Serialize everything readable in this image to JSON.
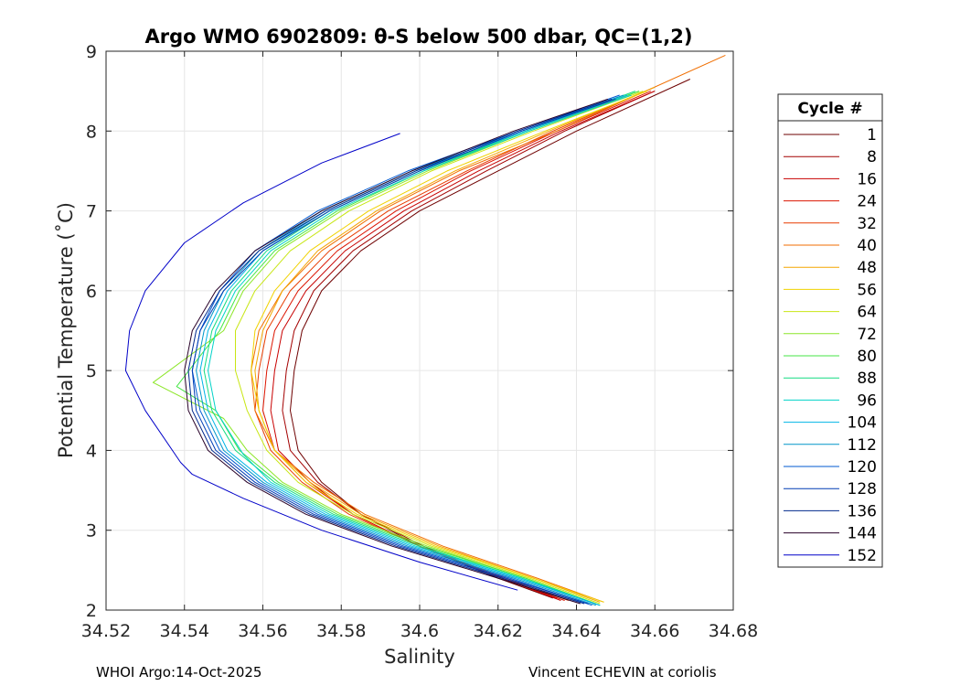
{
  "chart_data": {
    "type": "line",
    "title": "Argo WMO 6902809: θ-S below 500 dbar,  QC=(1,2)",
    "xlabel": "Salinity",
    "ylabel": "Potential Temperature (˚C)",
    "xlim": [
      34.52,
      34.68
    ],
    "ylim": [
      2,
      9
    ],
    "xticks": [
      34.52,
      34.54,
      34.56,
      34.58,
      34.6,
      34.62,
      34.64,
      34.66,
      34.68
    ],
    "xtick_labels": [
      "34.52",
      "34.54",
      "34.56",
      "34.58",
      "34.6",
      "34.62",
      "34.64",
      "34.66",
      "34.68"
    ],
    "yticks": [
      2,
      3,
      4,
      5,
      6,
      7,
      8,
      9
    ],
    "ytick_labels": [
      "2",
      "3",
      "4",
      "5",
      "6",
      "7",
      "8",
      "9"
    ],
    "grid": true,
    "legend": {
      "title": "Cycle #",
      "position": "right-outside",
      "entries": [
        {
          "label": "1",
          "color": "#6e0000"
        },
        {
          "label": "8",
          "color": "#a30000"
        },
        {
          "label": "16",
          "color": "#c80000"
        },
        {
          "label": "24",
          "color": "#dc1400"
        },
        {
          "label": "32",
          "color": "#e83c00"
        },
        {
          "label": "40",
          "color": "#f06e00"
        },
        {
          "label": "48",
          "color": "#f3a500"
        },
        {
          "label": "56",
          "color": "#f0d200"
        },
        {
          "label": "64",
          "color": "#c8e614"
        },
        {
          "label": "72",
          "color": "#8ce628"
        },
        {
          "label": "80",
          "color": "#46e646"
        },
        {
          "label": "88",
          "color": "#14dc82"
        },
        {
          "label": "96",
          "color": "#00d2c8"
        },
        {
          "label": "104",
          "color": "#00b4e6"
        },
        {
          "label": "112",
          "color": "#0096c8"
        },
        {
          "label": "120",
          "color": "#005ad2"
        },
        {
          "label": "128",
          "color": "#003cb4"
        },
        {
          "label": "136",
          "color": "#00288c"
        },
        {
          "label": "144",
          "color": "#280028"
        },
        {
          "label": "152",
          "color": "#0000c8"
        }
      ]
    },
    "series": [
      {
        "name": "1",
        "color": "#6e0000",
        "s": [
          34.634,
          34.62,
          34.6,
          34.585,
          34.575,
          34.569,
          34.567,
          34.568,
          34.57,
          34.575,
          34.585,
          34.6,
          34.62,
          34.64,
          34.669
        ],
        "t": [
          2.15,
          2.4,
          2.8,
          3.2,
          3.6,
          4.0,
          4.5,
          5.0,
          5.5,
          6.0,
          6.5,
          7.0,
          7.5,
          8.0,
          8.65
        ]
      },
      {
        "name": "8",
        "color": "#a30000",
        "s": [
          34.635,
          34.621,
          34.601,
          34.585,
          34.574,
          34.567,
          34.565,
          34.566,
          34.568,
          34.573,
          34.583,
          34.598,
          34.617,
          34.637,
          34.66
        ],
        "t": [
          2.15,
          2.4,
          2.8,
          3.2,
          3.6,
          4.0,
          4.5,
          5.0,
          5.5,
          6.0,
          6.5,
          7.0,
          7.5,
          8.0,
          8.5
        ]
      },
      {
        "name": "16",
        "color": "#c80000",
        "s": [
          34.636,
          34.621,
          34.6,
          34.583,
          34.572,
          34.564,
          34.562,
          34.563,
          34.565,
          34.571,
          34.581,
          34.596,
          34.615,
          34.636,
          34.66
        ],
        "t": [
          2.12,
          2.4,
          2.8,
          3.2,
          3.6,
          4.0,
          4.5,
          5.0,
          5.5,
          6.0,
          6.5,
          7.0,
          7.5,
          8.0,
          8.5
        ]
      },
      {
        "name": "24",
        "color": "#dc1400",
        "s": [
          34.637,
          34.621,
          34.6,
          34.583,
          34.571,
          34.563,
          34.56,
          34.561,
          34.563,
          34.569,
          34.579,
          34.594,
          34.613,
          34.635,
          34.659
        ],
        "t": [
          2.12,
          2.4,
          2.8,
          3.2,
          3.6,
          4.0,
          4.5,
          5.0,
          5.5,
          6.0,
          6.5,
          7.0,
          7.5,
          8.0,
          8.5
        ]
      },
      {
        "name": "32",
        "color": "#e83c00",
        "s": [
          34.638,
          34.622,
          34.6,
          34.582,
          34.57,
          34.562,
          34.558,
          34.559,
          34.561,
          34.567,
          34.577,
          34.592,
          34.612,
          34.634,
          34.66
        ],
        "t": [
          2.12,
          2.4,
          2.8,
          3.2,
          3.6,
          4.0,
          4.5,
          5.0,
          5.5,
          6.0,
          6.5,
          7.0,
          7.5,
          8.0,
          8.55
        ]
      },
      {
        "name": "40",
        "color": "#f06e00",
        "s": [
          34.647,
          34.63,
          34.606,
          34.586,
          34.573,
          34.563,
          34.558,
          34.557,
          34.559,
          34.565,
          34.575,
          34.59,
          34.61,
          34.635,
          34.678
        ],
        "t": [
          2.1,
          2.4,
          2.8,
          3.2,
          3.6,
          4.0,
          4.5,
          5.0,
          5.5,
          6.0,
          6.5,
          7.0,
          7.5,
          8.0,
          8.95
        ]
      },
      {
        "name": "48",
        "color": "#f3a500",
        "s": [
          34.646,
          34.629,
          34.605,
          34.585,
          34.572,
          34.563,
          34.559,
          34.558,
          34.56,
          34.565,
          34.574,
          34.589,
          34.609,
          34.633,
          34.66
        ],
        "t": [
          2.1,
          2.4,
          2.8,
          3.2,
          3.6,
          4.0,
          4.5,
          5.0,
          5.5,
          6.0,
          6.5,
          7.0,
          7.5,
          8.0,
          8.55
        ]
      },
      {
        "name": "56",
        "color": "#f0d200",
        "s": [
          34.647,
          34.629,
          34.604,
          34.584,
          34.571,
          34.563,
          34.559,
          34.557,
          34.558,
          34.563,
          34.572,
          34.587,
          34.607,
          34.632,
          34.658
        ],
        "t": [
          2.1,
          2.4,
          2.8,
          3.2,
          3.6,
          4.0,
          4.5,
          5.0,
          5.5,
          6.0,
          6.5,
          7.0,
          7.5,
          8.0,
          8.5
        ]
      },
      {
        "name": "64",
        "color": "#c8e614",
        "s": [
          34.646,
          34.628,
          34.603,
          34.583,
          34.569,
          34.561,
          34.556,
          34.553,
          34.553,
          34.558,
          34.567,
          34.582,
          34.603,
          34.629,
          34.657
        ],
        "t": [
          2.08,
          2.4,
          2.8,
          3.2,
          3.6,
          4.0,
          4.5,
          5.0,
          5.5,
          6.0,
          6.5,
          7.0,
          7.5,
          8.0,
          8.5
        ]
      },
      {
        "name": "72",
        "color": "#8ce628",
        "s": [
          34.645,
          34.627,
          34.602,
          34.58,
          34.565,
          34.556,
          34.55,
          34.532,
          34.55,
          34.555,
          34.564,
          34.58,
          34.602,
          34.628,
          34.656
        ],
        "t": [
          2.08,
          2.4,
          2.8,
          3.2,
          3.6,
          4.0,
          4.4,
          4.85,
          5.5,
          6.0,
          6.5,
          7.0,
          7.5,
          8.0,
          8.5
        ]
      },
      {
        "name": "80",
        "color": "#46e646",
        "s": [
          34.646,
          34.627,
          34.601,
          34.579,
          34.564,
          34.554,
          34.548,
          34.538,
          34.549,
          34.554,
          34.563,
          34.579,
          34.601,
          34.627,
          34.656
        ],
        "t": [
          2.06,
          2.4,
          2.8,
          3.2,
          3.6,
          4.0,
          4.5,
          4.8,
          5.5,
          6.0,
          6.5,
          7.0,
          7.5,
          8.0,
          8.5
        ]
      },
      {
        "name": "88",
        "color": "#14dc82",
        "s": [
          34.646,
          34.626,
          34.6,
          34.578,
          34.563,
          34.553,
          34.547,
          34.545,
          34.547,
          34.552,
          34.561,
          34.577,
          34.6,
          34.627,
          34.655
        ],
        "t": [
          2.06,
          2.4,
          2.8,
          3.2,
          3.6,
          4.0,
          4.5,
          5.0,
          5.5,
          6.0,
          6.5,
          7.0,
          7.5,
          8.0,
          8.5
        ]
      },
      {
        "name": "96",
        "color": "#00d2c8",
        "s": [
          34.646,
          34.626,
          34.599,
          34.577,
          34.562,
          34.555,
          34.548,
          34.546,
          34.548,
          34.553,
          34.562,
          34.578,
          34.601,
          34.628,
          34.654
        ],
        "t": [
          2.06,
          2.4,
          2.8,
          3.2,
          3.6,
          3.95,
          4.5,
          5.0,
          5.5,
          6.0,
          6.5,
          7.0,
          7.5,
          8.0,
          8.45
        ]
      },
      {
        "name": "104",
        "color": "#00b4e6",
        "s": [
          34.646,
          34.625,
          34.598,
          34.576,
          34.561,
          34.551,
          34.546,
          34.544,
          34.546,
          34.551,
          34.56,
          34.576,
          34.599,
          34.627,
          34.653
        ],
        "t": [
          2.06,
          2.4,
          2.8,
          3.2,
          3.6,
          4.0,
          4.5,
          5.0,
          5.5,
          6.0,
          6.5,
          7.0,
          7.5,
          8.0,
          8.45
        ]
      },
      {
        "name": "112",
        "color": "#0096c8",
        "s": [
          34.645,
          34.624,
          34.597,
          34.575,
          34.56,
          34.55,
          34.545,
          34.543,
          34.545,
          34.55,
          34.559,
          34.575,
          34.598,
          34.626,
          34.652
        ],
        "t": [
          2.06,
          2.4,
          2.8,
          3.2,
          3.6,
          4.0,
          4.5,
          5.0,
          5.5,
          6.0,
          6.5,
          7.0,
          7.5,
          8.0,
          8.45
        ]
      },
      {
        "name": "120",
        "color": "#005ad2",
        "s": [
          34.644,
          34.623,
          34.596,
          34.574,
          34.559,
          34.549,
          34.544,
          34.542,
          34.544,
          34.549,
          34.558,
          34.574,
          34.597,
          34.625,
          34.651
        ],
        "t": [
          2.06,
          2.4,
          2.8,
          3.2,
          3.6,
          4.0,
          4.5,
          5.0,
          5.5,
          6.0,
          6.5,
          7.0,
          7.5,
          8.0,
          8.45
        ]
      },
      {
        "name": "128",
        "color": "#003cb4",
        "s": [
          34.643,
          34.622,
          34.595,
          34.573,
          34.558,
          34.548,
          34.543,
          34.542,
          34.544,
          34.55,
          34.56,
          34.577,
          34.6,
          34.626,
          34.65
        ],
        "t": [
          2.08,
          2.4,
          2.8,
          3.2,
          3.6,
          4.0,
          4.5,
          5.0,
          5.5,
          6.0,
          6.5,
          7.0,
          7.5,
          8.0,
          8.4
        ]
      },
      {
        "name": "136",
        "color": "#00288c",
        "s": [
          34.642,
          34.621,
          34.594,
          34.572,
          34.557,
          34.547,
          34.542,
          34.541,
          34.543,
          34.549,
          34.559,
          34.576,
          34.599,
          34.625,
          34.649
        ],
        "t": [
          2.08,
          2.4,
          2.8,
          3.2,
          3.6,
          4.0,
          4.5,
          5.0,
          5.5,
          6.0,
          6.5,
          7.0,
          7.5,
          8.0,
          8.4
        ]
      },
      {
        "name": "144",
        "color": "#280028",
        "s": [
          34.641,
          34.62,
          34.593,
          34.571,
          34.556,
          34.546,
          34.541,
          34.54,
          34.542,
          34.548,
          34.558,
          34.575,
          34.598,
          34.624,
          34.648
        ],
        "t": [
          2.08,
          2.4,
          2.8,
          3.2,
          3.6,
          4.0,
          4.5,
          5.0,
          5.5,
          6.0,
          6.5,
          7.0,
          7.5,
          8.0,
          8.4
        ]
      },
      {
        "name": "152",
        "color": "#0000c8",
        "s": [
          34.625,
          34.6,
          34.575,
          34.555,
          34.542,
          34.539,
          34.53,
          34.525,
          34.526,
          34.53,
          34.535,
          34.54,
          34.555,
          34.575,
          34.595
        ],
        "t": [
          2.25,
          2.6,
          3.0,
          3.4,
          3.7,
          3.85,
          4.5,
          5.0,
          5.5,
          6.0,
          6.3,
          6.6,
          7.1,
          7.6,
          7.97
        ]
      }
    ]
  },
  "footer": {
    "left": "WHOI Argo:14-Oct-2025",
    "right": "Vincent ECHEVIN at coriolis"
  }
}
